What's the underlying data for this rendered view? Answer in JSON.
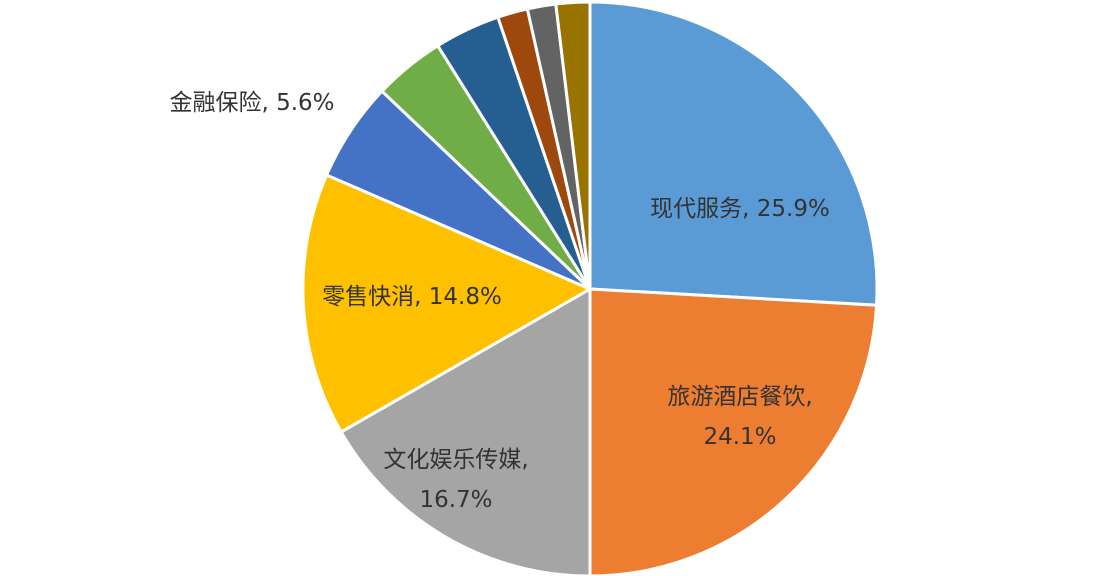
{
  "chart_data": {
    "type": "pie",
    "start_angle_deg": 0,
    "direction": "clockwise",
    "slices": [
      {
        "name": "现代服务",
        "value": 25.9,
        "color": "#5B9BD5",
        "label_lines": [
          "现代服务, 25.9%"
        ]
      },
      {
        "name": "旅游酒店餐饮",
        "value": 24.1,
        "color": "#ED7D31",
        "label_lines": [
          "旅游酒店餐饮,",
          "24.1%"
        ]
      },
      {
        "name": "文化娱乐传媒",
        "value": 16.7,
        "color": "#A5A5A5",
        "label_lines": [
          "文化娱乐传媒,",
          "16.7%"
        ]
      },
      {
        "name": "零售快消",
        "value": 14.8,
        "color": "#FFC000",
        "label_lines": [
          "零售快消, 14.8%"
        ]
      },
      {
        "name": "金融保险",
        "value": 5.6,
        "color": "#4472C4",
        "label_lines": [
          "金融保险, 5.6%"
        ],
        "label_outside": true
      },
      {
        "name": "",
        "value": 4.0,
        "color": "#70AD47",
        "label_lines": []
      },
      {
        "name": "",
        "value": 3.7,
        "color": "#255E91",
        "label_lines": []
      },
      {
        "name": "",
        "value": 1.7,
        "color": "#9E480E",
        "label_lines": []
      },
      {
        "name": "",
        "value": 1.6,
        "color": "#636363",
        "label_lines": []
      },
      {
        "name": "",
        "value": 1.9,
        "color": "#997300",
        "label_lines": []
      }
    ]
  }
}
